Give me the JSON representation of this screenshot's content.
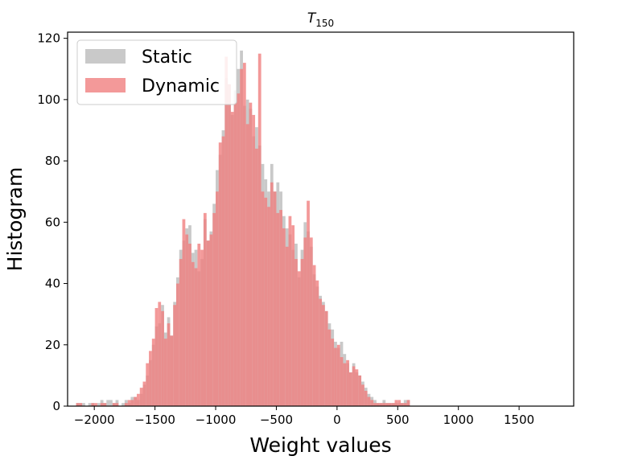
{
  "chart_data": {
    "type": "bar",
    "title_main": "T",
    "title_sub": "150",
    "xlabel": "Weight values",
    "ylabel": "Histogram",
    "xlim": [
      -2220,
      1950
    ],
    "ylim": [
      0,
      122
    ],
    "xticks": [
      -2000,
      -1500,
      -1000,
      -500,
      0,
      500,
      1000,
      1500
    ],
    "xtick_labels": [
      "−2000",
      "−1500",
      "−1000",
      "−500",
      "0",
      "500",
      "1000",
      "1500"
    ],
    "yticks": [
      0,
      20,
      40,
      60,
      80,
      100,
      120
    ],
    "ytick_labels": [
      "0",
      "20",
      "40",
      "60",
      "80",
      "100",
      "120"
    ],
    "grid": false,
    "legend_position": "top-left",
    "bin_start": -2150,
    "bin_width": 25,
    "colors": {
      "static": "#c0c0c0",
      "dynamic": "#f08080"
    },
    "series": [
      {
        "name": "Static",
        "values": [
          1,
          1,
          1,
          0,
          1,
          1,
          0,
          1,
          2,
          1,
          2,
          2,
          1,
          2,
          0,
          1,
          2,
          1,
          3,
          3,
          2,
          4,
          7,
          10,
          15,
          20,
          26,
          27,
          33,
          24,
          29,
          23,
          34,
          42,
          51,
          54,
          58,
          59,
          50,
          51,
          44,
          48,
          61,
          54,
          57,
          66,
          77,
          82,
          90,
          107,
          105,
          95,
          103,
          110,
          116,
          98,
          100,
          97,
          88,
          91,
          85,
          79,
          74,
          70,
          79,
          70,
          73,
          70,
          62,
          58,
          56,
          51,
          53,
          42,
          51,
          60,
          57,
          52,
          43,
          39,
          36,
          34,
          31,
          27,
          25,
          21,
          19,
          21,
          17,
          14,
          11,
          14,
          11,
          10,
          8,
          6,
          4,
          3,
          2,
          1,
          1,
          2,
          1,
          1,
          1,
          1,
          1,
          1,
          2,
          2
        ]
      },
      {
        "name": "Dynamic",
        "values": [
          1,
          1,
          0,
          0,
          0,
          1,
          1,
          0,
          1,
          1,
          0,
          0,
          1,
          1,
          0,
          0,
          1,
          2,
          2,
          3,
          4,
          6,
          8,
          14,
          18,
          22,
          32,
          34,
          31,
          22,
          27,
          23,
          33,
          40,
          48,
          61,
          56,
          53,
          47,
          45,
          53,
          51,
          63,
          54,
          56,
          63,
          70,
          86,
          88,
          114,
          105,
          96,
          99,
          102,
          110,
          112,
          92,
          99,
          95,
          84,
          115,
          70,
          68,
          65,
          73,
          70,
          63,
          64,
          58,
          52,
          62,
          59,
          48,
          44,
          48,
          55,
          67,
          55,
          46,
          41,
          35,
          33,
          31,
          25,
          22,
          19,
          20,
          16,
          14,
          15,
          11,
          13,
          12,
          10,
          7,
          5,
          3,
          2,
          1,
          1,
          1,
          1,
          1,
          1,
          1,
          2,
          2,
          1,
          1,
          2
        ]
      }
    ]
  }
}
